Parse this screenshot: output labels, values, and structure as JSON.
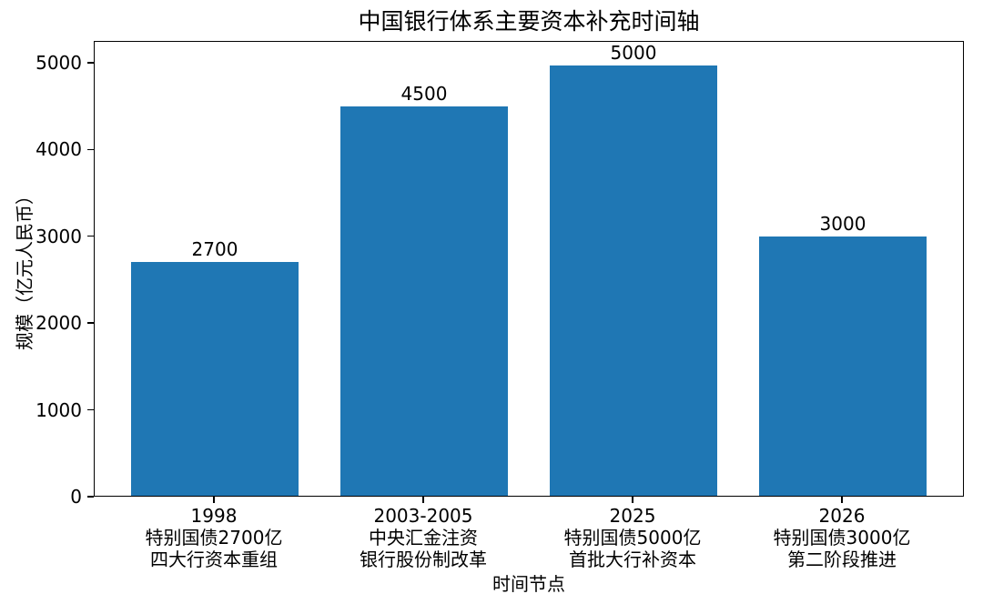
{
  "chart_data": {
    "type": "bar",
    "title": "中国银行体系主要资本补充时间轴",
    "xlabel": "时间节点",
    "ylabel": "规模（亿元人民币）",
    "categories": [
      "1998\n特别国债2700亿\n四大行资本重组",
      "2003-2005\n中央汇金注资\n银行股份制改革",
      "2025\n特别国债5000亿\n首批大行补资本",
      "2026\n特别国债3000亿\n第二阶段推进"
    ],
    "values": [
      2700,
      4500,
      5000,
      3000
    ],
    "bar_labels": [
      "2700",
      "4500",
      "5000",
      "3000"
    ],
    "yticks": [
      0,
      1000,
      2000,
      3000,
      4000,
      5000
    ],
    "ylim": [
      0,
      5250
    ],
    "bar_color": "#1f77b4",
    "axis_color": "#000000",
    "background_color": "#ffffff",
    "grid": false,
    "legend_position": "none"
  }
}
